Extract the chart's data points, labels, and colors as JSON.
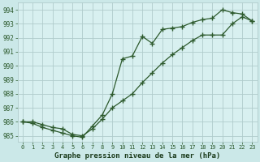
{
  "title": "Graphe pression niveau de la mer (hPa)",
  "background_color": "#cbe8e8",
  "plot_bg_color": "#d8f0f0",
  "line_color": "#2d5a2d",
  "grid_color": "#b0cccc",
  "xlim": [
    -0.5,
    23.5
  ],
  "ylim": [
    984.6,
    994.5
  ],
  "yticks": [
    985,
    986,
    987,
    988,
    989,
    990,
    991,
    992,
    993,
    994
  ],
  "xticks": [
    0,
    1,
    2,
    3,
    4,
    5,
    6,
    7,
    8,
    9,
    10,
    11,
    12,
    13,
    14,
    15,
    16,
    17,
    18,
    19,
    20,
    21,
    22,
    23
  ],
  "series1_x": [
    0,
    1,
    2,
    3,
    4,
    5,
    6,
    7,
    8,
    9,
    10,
    11,
    12,
    13,
    14,
    15,
    16,
    17,
    18,
    19,
    20,
    21,
    22,
    23
  ],
  "series1_y": [
    986.0,
    985.9,
    985.6,
    985.4,
    985.2,
    985.0,
    984.9,
    985.7,
    986.5,
    988.0,
    990.5,
    990.7,
    992.1,
    991.6,
    992.6,
    992.7,
    992.8,
    993.1,
    993.3,
    993.4,
    994.0,
    993.8,
    993.7,
    993.2
  ],
  "series2_x": [
    0,
    1,
    2,
    3,
    4,
    5,
    6,
    7,
    8,
    9,
    10,
    11,
    12,
    13,
    14,
    15,
    16,
    17,
    18,
    19,
    20,
    21,
    22,
    23
  ],
  "series2_y": [
    986.0,
    986.0,
    985.8,
    985.6,
    985.5,
    985.1,
    985.0,
    985.5,
    986.2,
    987.0,
    987.5,
    988.0,
    988.8,
    989.5,
    990.2,
    990.8,
    991.3,
    991.8,
    992.2,
    992.2,
    992.2,
    993.0,
    993.5,
    993.2
  ]
}
